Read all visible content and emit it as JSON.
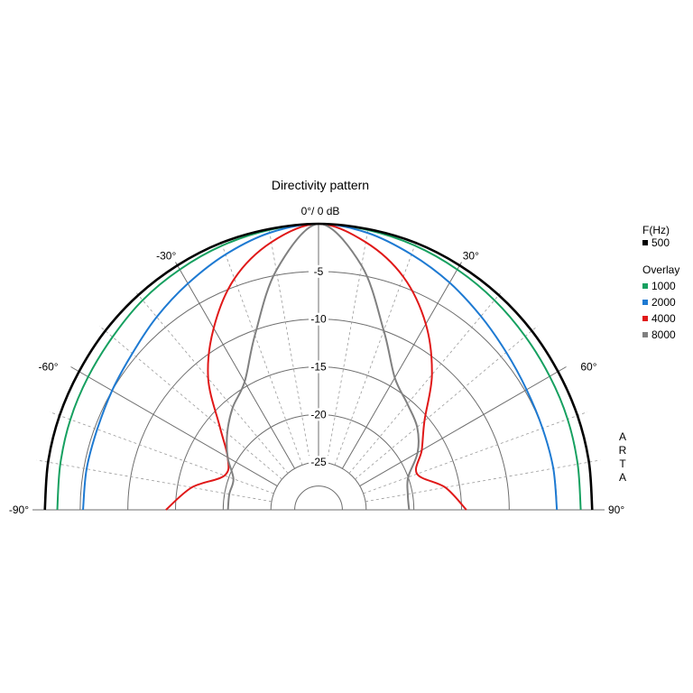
{
  "chart_data": {
    "type": "polar",
    "title": "Directivity pattern",
    "top_label": "0°/ 0 dB",
    "watermark": "ARTA",
    "angle_range": [
      -90,
      90
    ],
    "r_range_db": [
      -30,
      0
    ],
    "radial_ticks": [
      "-5",
      "-10",
      "-15",
      "-20",
      "-25"
    ],
    "radial_tick_values": [
      -5,
      -10,
      -15,
      -20,
      -25
    ],
    "angle_ticks": [
      {
        "angle": -90,
        "label": "-90°"
      },
      {
        "angle": -60,
        "label": "-60°"
      },
      {
        "angle": -30,
        "label": "-30°"
      },
      {
        "angle": 30,
        "label": "30°"
      },
      {
        "angle": 60,
        "label": "60°"
      },
      {
        "angle": 90,
        "label": "90°"
      }
    ],
    "grid": true,
    "legend": {
      "placement": "right",
      "header": "F(Hz)",
      "overlay_header": "Overlay"
    },
    "series": [
      {
        "name": "500",
        "color": "#000000",
        "group": "main",
        "angles": [
          0,
          10,
          20,
          30,
          40,
          50,
          60,
          70,
          80,
          90
        ],
        "db_right": [
          0,
          -0.1,
          -0.2,
          -0.4,
          -0.6,
          -0.8,
          -1.0,
          -1.1,
          -1.2,
          -1.3
        ],
        "db_left": [
          0,
          -0.1,
          -0.2,
          -0.4,
          -0.6,
          -0.8,
          -1.0,
          -1.1,
          -1.2,
          -1.3
        ]
      },
      {
        "name": "1000",
        "color": "#16a060",
        "group": "overlay",
        "angles": [
          0,
          10,
          20,
          30,
          40,
          50,
          60,
          70,
          80,
          90
        ],
        "db_right": [
          0,
          -0.2,
          -0.5,
          -0.9,
          -1.3,
          -1.7,
          -2.0,
          -2.2,
          -2.4,
          -2.5
        ],
        "db_left": [
          0,
          -0.2,
          -0.5,
          -0.9,
          -1.3,
          -1.8,
          -2.1,
          -2.3,
          -2.5,
          -2.6
        ]
      },
      {
        "name": "2000",
        "color": "#1e7ad2",
        "group": "overlay",
        "angles": [
          0,
          10,
          20,
          30,
          40,
          50,
          60,
          70,
          80,
          90
        ],
        "db_right": [
          0,
          -0.5,
          -1.5,
          -2.5,
          -3.5,
          -4.3,
          -4.8,
          -5.0,
          -5.0,
          -5.0
        ],
        "db_left": [
          0,
          -0.5,
          -1.5,
          -2.6,
          -3.6,
          -4.5,
          -5.0,
          -5.3,
          -5.3,
          -5.3
        ]
      },
      {
        "name": "4000",
        "color": "#e01818",
        "group": "overlay",
        "angles": [
          0,
          10,
          20,
          30,
          40,
          50,
          60,
          70,
          80,
          90
        ],
        "db_right": [
          0,
          -1.5,
          -4.0,
          -7.5,
          -11.5,
          -15.5,
          -17.5,
          -19.0,
          -16.5,
          -14.5
        ],
        "db_left": [
          0,
          -1.5,
          -4.2,
          -8.0,
          -12.0,
          -16.5,
          -19.0,
          -19.5,
          -16.5,
          -14.0
        ]
      },
      {
        "name": "8000",
        "color": "#808080",
        "group": "overlay",
        "angles": [
          0,
          10,
          20,
          30,
          40,
          50,
          60,
          70,
          80,
          90
        ],
        "db_right": [
          0,
          -4.0,
          -10.0,
          -14.0,
          -15.5,
          -16.5,
          -18.0,
          -20.0,
          -20.5,
          -20.5
        ],
        "db_left": [
          0,
          -4.5,
          -10.5,
          -14.5,
          -16.0,
          -17.5,
          -19.0,
          -20.5,
          -20.5,
          -20.5
        ]
      }
    ]
  }
}
